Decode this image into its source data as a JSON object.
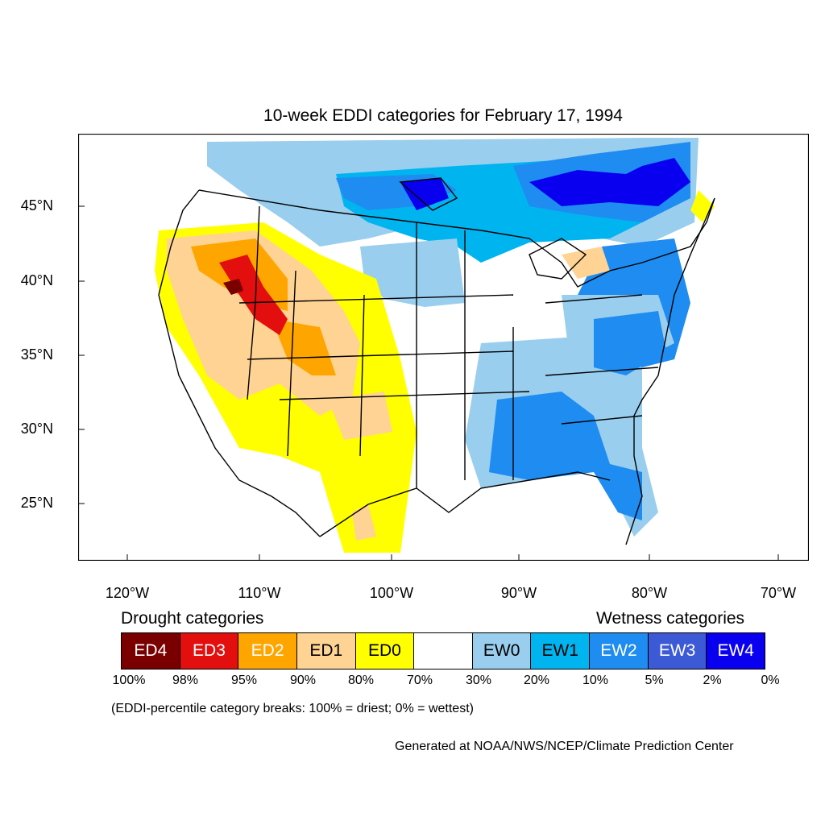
{
  "title": "10-week EDDI categories for February 17, 1994",
  "map": {
    "latitude_labels": [
      "45°N",
      "40°N",
      "35°N",
      "30°N",
      "25°N"
    ],
    "longitude_labels": [
      "120°W",
      "110°W",
      "100°W",
      "90°W",
      "80°W",
      "70°W"
    ],
    "colors": {
      "ED4": "#7a0000",
      "ED3": "#e30e0e",
      "ED2": "#ffa500",
      "ED1": "#ffd394",
      "ED0": "#ffff00",
      "neutral": "#ffffff",
      "EW0": "#99ceee",
      "EW1": "#00b4f0",
      "EW2": "#1e8cf0",
      "EW3": "#3c5ad6",
      "EW4": "#0a00f0"
    }
  },
  "legend": {
    "drought_heading": "Drought categories",
    "wetness_heading": "Wetness categories",
    "categories": [
      {
        "label": "ED4",
        "color": "#7a0000",
        "text_color": "#ffffff"
      },
      {
        "label": "ED3",
        "color": "#e30e0e",
        "text_color": "#ffffff"
      },
      {
        "label": "ED2",
        "color": "#ffa500",
        "text_color": "#ffffff"
      },
      {
        "label": "ED1",
        "color": "#ffd394",
        "text_color": "#000000"
      },
      {
        "label": "ED0",
        "color": "#ffff00",
        "text_color": "#000000"
      },
      {
        "label": "",
        "color": "#ffffff",
        "text_color": "#000000"
      },
      {
        "label": "EW0",
        "color": "#99ceee",
        "text_color": "#000000"
      },
      {
        "label": "EW1",
        "color": "#00b4f0",
        "text_color": "#000000"
      },
      {
        "label": "EW2",
        "color": "#1e8cf0",
        "text_color": "#ffffff"
      },
      {
        "label": "EW3",
        "color": "#3c5ad6",
        "text_color": "#ffffff"
      },
      {
        "label": "EW4",
        "color": "#0a00f0",
        "text_color": "#ffffff"
      }
    ],
    "breaks": [
      "100%",
      "98%",
      "95%",
      "90%",
      "80%",
      "70%",
      "30%",
      "20%",
      "10%",
      "5%",
      "2%",
      "0%"
    ]
  },
  "note": "(EDDI-percentile category breaks: 100% = driest; 0% = wettest)",
  "credit": "Generated at NOAA/NWS/NCEP/Climate Prediction Center"
}
